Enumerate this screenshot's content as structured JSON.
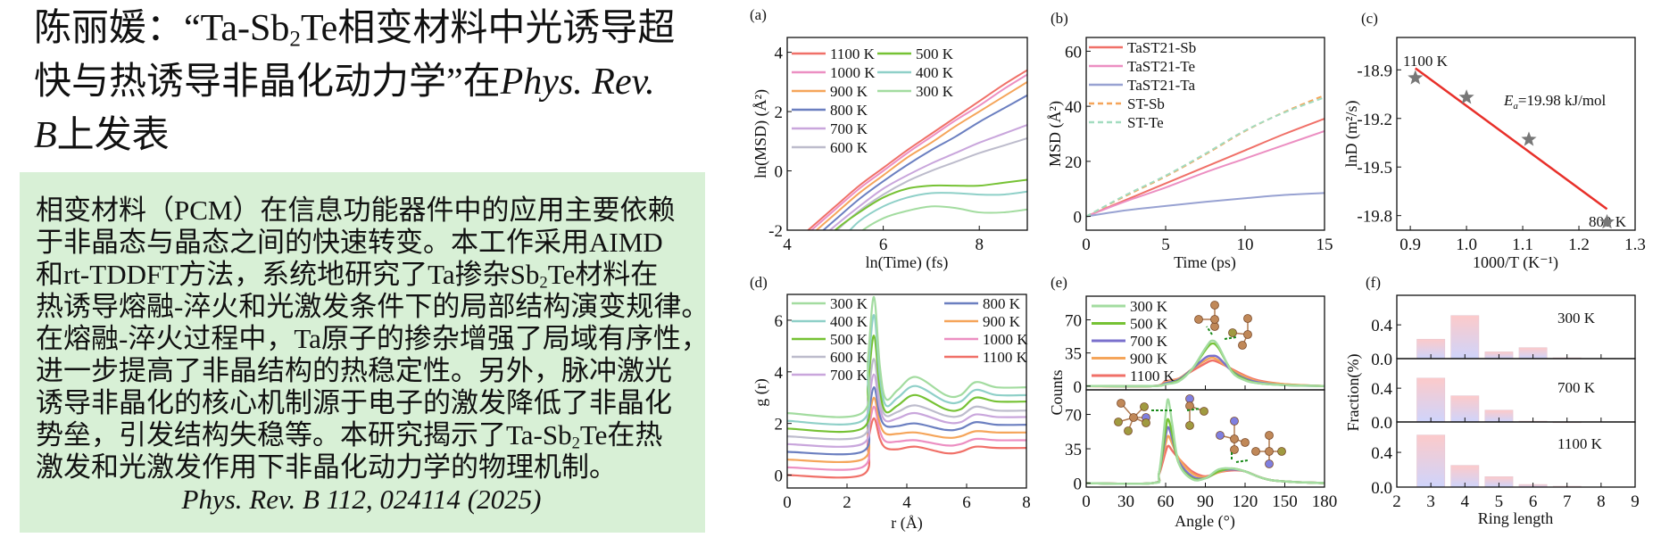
{
  "title": {
    "line1_a": "陈丽媛：“Ta-Sb",
    "line1_sub": "2",
    "line1_b": "Te相变材料中光诱导超",
    "line2_a": "快与热诱导非晶化动力学”在",
    "line2_i": "Phys. Rev.",
    "line3_i": "B",
    "line3_b": "上发表"
  },
  "body": {
    "lines": [
      {
        "a": "相变材料（PCM）在信息功能器件中的应用主要依赖"
      },
      {
        "a": "于非晶态与晶态之间的快速转变。本工作采用AIMD"
      },
      {
        "a": "和rt-TDDFT方法，系统地研究了Ta掺杂Sb",
        "sub": "2",
        "b": "Te材料在"
      },
      {
        "a": "热诱导熔融-淬火和光激发条件下的局部结构演变规律。"
      },
      {
        "a": "在熔融-淬火过程中，Ta原子的掺杂增强了局域有序性，"
      },
      {
        "a": "进一步提高了非晶结构的热稳定性。另外，脉冲激光"
      },
      {
        "a": "诱导非晶化的核心机制源于电子的激发降低了非晶化"
      },
      {
        "a": "势垒，引发结构失稳等。本研究揭示了Ta-Sb",
        "sub": "2",
        "b": "Te在热"
      },
      {
        "a": "激发和光激发作用下非晶化动力学的物理机制。"
      }
    ],
    "citation": "Phys. Rev. B 112, 024114 (2025)"
  },
  "colors": {
    "box_bg": "#d8f0d6",
    "T1100": "#f07068",
    "T1000": "#ec8fc2",
    "T900": "#f5a55a",
    "T800": "#6b7fc0",
    "T700": "#c9a6dc",
    "T600": "#bdbccc",
    "T500": "#76c234",
    "T400": "#8fd0c8",
    "T300": "#a3dca0",
    "fit": "#e8302a",
    "star": "#777777"
  },
  "chart_data": [
    {
      "panel": "(a)",
      "type": "line",
      "xlabel": "ln(Time) (fs)",
      "ylabel": "ln(MSD) (Å²)",
      "xlim": [
        4,
        9
      ],
      "ylim": [
        -2,
        4.5
      ],
      "xticks": [
        4,
        6,
        8
      ],
      "yticks": [
        -2,
        0,
        2,
        4
      ],
      "x": [
        4.4,
        5,
        5.5,
        6,
        6.5,
        7,
        7.5,
        8,
        8.5,
        9
      ],
      "series": [
        {
          "name": "1100 K",
          "color": "#f07068",
          "values": [
            -2.05,
            -1.2,
            -0.5,
            0.1,
            0.7,
            1.25,
            1.8,
            2.35,
            2.9,
            3.4
          ]
        },
        {
          "name": "1000 K",
          "color": "#ec8fc2",
          "values": [
            -2.15,
            -1.3,
            -0.6,
            0.0,
            0.6,
            1.15,
            1.7,
            2.2,
            2.75,
            3.25
          ]
        },
        {
          "name": "900 K",
          "color": "#f5a55a",
          "values": [
            -2.3,
            -1.45,
            -0.75,
            -0.15,
            0.45,
            0.95,
            1.5,
            2.0,
            2.5,
            3.0
          ]
        },
        {
          "name": "800 K",
          "color": "#6b7fc0",
          "values": [
            -2.5,
            -1.65,
            -0.95,
            -0.35,
            0.2,
            0.7,
            1.15,
            1.65,
            2.1,
            2.55
          ]
        },
        {
          "name": "700 K",
          "color": "#c9a6dc",
          "values": [
            -2.7,
            -1.85,
            -1.2,
            -0.6,
            -0.15,
            0.25,
            0.6,
            0.95,
            1.25,
            1.55
          ]
        },
        {
          "name": "600 K",
          "color": "#bdbccc",
          "values": [
            -2.9,
            -2.05,
            -1.35,
            -0.8,
            -0.35,
            0.0,
            0.3,
            0.6,
            0.85,
            1.1
          ]
        },
        {
          "name": "500 K",
          "color": "#76c234",
          "values": [
            -3.0,
            -2.0,
            -1.4,
            -0.9,
            -0.6,
            -0.5,
            -0.5,
            -0.5,
            -0.4,
            -0.3
          ]
        },
        {
          "name": "400 K",
          "color": "#8fd0c8",
          "values": [
            -3.2,
            -2.5,
            -1.7,
            -1.2,
            -0.9,
            -0.75,
            -0.75,
            -0.8,
            -0.8,
            -0.7
          ]
        },
        {
          "name": "300 K",
          "color": "#a3dca0",
          "values": [
            -3.5,
            -3.0,
            -2.1,
            -1.6,
            -1.35,
            -1.2,
            -1.25,
            -1.4,
            -1.4,
            -1.3
          ]
        }
      ],
      "legend": "top-left"
    },
    {
      "panel": "(b)",
      "type": "line",
      "xlabel": "Time (ps)",
      "ylabel": "MSD (Å²)",
      "xlim": [
        0,
        15
      ],
      "ylim": [
        -5,
        65
      ],
      "xticks": [
        0,
        5,
        10,
        15
      ],
      "yticks": [
        0,
        20,
        40,
        60
      ],
      "x": [
        0,
        2.5,
        5,
        7.5,
        10,
        12.5,
        15
      ],
      "series": [
        {
          "name": "TaST21-Sb",
          "color": "#f07068",
          "dash": false,
          "values": [
            0,
            6,
            12,
            18,
            24,
            30,
            35.5
          ]
        },
        {
          "name": "TaST21-Te",
          "color": "#ec8fc2",
          "dash": false,
          "values": [
            0,
            5.5,
            10.5,
            16,
            21,
            26,
            31
          ]
        },
        {
          "name": "TaST21-Ta",
          "color": "#98a2d2",
          "dash": false,
          "values": [
            0,
            2.2,
            3.8,
            5.3,
            6.6,
            7.8,
            8.5
          ]
        },
        {
          "name": "ST-Sb",
          "color": "#f5a55a",
          "dash": true,
          "values": [
            0,
            7.5,
            14.5,
            22.5,
            31,
            38,
            44
          ]
        },
        {
          "name": "ST-Te",
          "color": "#a3dcc0",
          "dash": true,
          "values": [
            0,
            7.8,
            14.8,
            22.8,
            31.2,
            37.8,
            43.2
          ]
        }
      ],
      "legend": "top-left"
    },
    {
      "panel": "(c)",
      "type": "scatter",
      "xlabel": "1000/T (K⁻¹)",
      "ylabel": "lnD (m²/s)",
      "xlim": [
        0.876,
        1.3
      ],
      "ylim": [
        -19.89,
        -18.7
      ],
      "xticks": [
        0.9,
        1.0,
        1.1,
        1.2,
        1.3
      ],
      "ytick_labels": [
        "-18.9",
        "-19.2",
        "-19.5",
        "-19.8"
      ],
      "yticks": [
        -18.9,
        -19.2,
        -19.5,
        -19.8
      ],
      "points": [
        [
          0.909,
          -18.95
        ],
        [
          1.0,
          -19.07
        ],
        [
          1.111,
          -19.33
        ],
        [
          1.25,
          -19.84
        ]
      ],
      "fit": [
        [
          0.909,
          -18.89
        ],
        [
          1.25,
          -19.76
        ]
      ],
      "annotations": {
        "high": "1100 K",
        "low": "800 K",
        "ea_symbol": "E",
        "ea_sub": "a",
        "ea_value": "=19.98 kJ/mol"
      }
    },
    {
      "panel": "(d)",
      "type": "line",
      "xlabel": "r (Å)",
      "ylabel": "g (r)",
      "xlim": [
        0,
        8
      ],
      "ylim": [
        -0.5,
        7
      ],
      "xticks": [
        0,
        2,
        4,
        6,
        8
      ],
      "yticks": [
        0,
        2,
        4,
        6
      ],
      "x": [
        0,
        2.5,
        2.7,
        2.9,
        3.1,
        3.3,
        3.7,
        4.3,
        5.3,
        5.8,
        6.3,
        7,
        8
      ],
      "series": [
        {
          "name": "300 K",
          "color": "#a3dca0",
          "values": [
            2.4,
            2.4,
            4.5,
            6.9,
            4.2,
            2.95,
            3.3,
            3.8,
            3.1,
            3.1,
            3.6,
            3.4,
            3.4
          ]
        },
        {
          "name": "400 K",
          "color": "#8fd0c8",
          "values": [
            2.1,
            2.1,
            4.0,
            6.2,
            3.8,
            2.7,
            3.0,
            3.45,
            2.85,
            2.85,
            3.3,
            3.1,
            3.1
          ]
        },
        {
          "name": "500 K",
          "color": "#76c234",
          "values": [
            1.8,
            1.8,
            3.5,
            5.4,
            3.3,
            2.45,
            2.7,
            3.1,
            2.55,
            2.55,
            3.0,
            2.85,
            2.85
          ]
        },
        {
          "name": "600 K",
          "color": "#bdbccc",
          "values": [
            1.5,
            1.5,
            3.0,
            4.5,
            2.9,
            2.3,
            2.45,
            2.7,
            2.3,
            2.3,
            2.65,
            2.5,
            2.5
          ]
        },
        {
          "name": "700 K",
          "color": "#c9a6dc",
          "values": [
            1.2,
            1.2,
            2.6,
            3.9,
            2.6,
            2.1,
            2.2,
            2.4,
            2.05,
            2.05,
            2.35,
            2.25,
            2.25
          ]
        },
        {
          "name": "800 K",
          "color": "#6b7fc0",
          "values": [
            0.9,
            0.9,
            2.2,
            3.4,
            2.3,
            1.9,
            1.9,
            2.0,
            1.75,
            1.8,
            2.05,
            1.95,
            1.95
          ]
        },
        {
          "name": "900 K",
          "color": "#f5a55a",
          "values": [
            0.6,
            0.6,
            1.9,
            3.0,
            2.0,
            1.6,
            1.6,
            1.65,
            1.45,
            1.5,
            1.7,
            1.65,
            1.65
          ]
        },
        {
          "name": "1000 K",
          "color": "#ec8fc2",
          "values": [
            0.3,
            0.3,
            1.6,
            2.65,
            1.7,
            1.3,
            1.3,
            1.35,
            1.15,
            1.2,
            1.4,
            1.35,
            1.35
          ]
        },
        {
          "name": "1100 K",
          "color": "#f07068",
          "values": [
            0.0,
            0.0,
            1.3,
            2.2,
            1.4,
            1.05,
            1.0,
            1.1,
            0.85,
            0.9,
            1.1,
            1.05,
            1.05
          ]
        }
      ],
      "legend": "top"
    },
    {
      "panel": "(e)",
      "type": "line",
      "xlabel": "Angle (°)",
      "ylabel": "Counts",
      "xlim": [
        0,
        180
      ],
      "ylim": [
        -4,
        95
      ],
      "xticks": [
        0,
        30,
        60,
        90,
        120,
        150,
        180
      ],
      "yticks": [
        0,
        35,
        70
      ],
      "top": {
        "x": [
          0,
          50,
          60,
          70,
          80,
          90,
          95,
          100,
          110,
          120,
          130,
          150,
          180
        ],
        "series": [
          {
            "name": "300 K",
            "color": "#a3dca0",
            "values": [
              0,
              0,
              2,
              5,
              18,
              40,
              48,
              42,
              15,
              6,
              3,
              1,
              0
            ]
          },
          {
            "name": "500 K",
            "color": "#76c234",
            "values": [
              0,
              0,
              2,
              6,
              18,
              38,
              45,
              40,
              16,
              7,
              3,
              1,
              0
            ]
          },
          {
            "name": "700 K",
            "color": "#7a70cc",
            "values": [
              0,
              0,
              3,
              7,
              18,
              30,
              32,
              30,
              16,
              8,
              4,
              1,
              0
            ]
          },
          {
            "name": "900 K",
            "color": "#f5a55a",
            "values": [
              0,
              0,
              4,
              8,
              18,
              27,
              30,
              27,
              17,
              10,
              5,
              2,
              0
            ]
          },
          {
            "name": "1100 K",
            "color": "#f07068",
            "values": [
              0,
              0,
              5,
              8,
              16,
              24,
              27,
              25,
              18,
              11,
              6,
              2,
              0
            ]
          }
        ]
      },
      "bottom": {
        "x": [
          0,
          50,
          55,
          60,
          62,
          65,
          70,
          80,
          90,
          100,
          110,
          120,
          140,
          180
        ],
        "series": [
          {
            "name": "300 K",
            "color": "#a3dca0",
            "values": [
              0,
              0,
              10,
              70,
              85,
              60,
              20,
              4,
              5,
              14,
              15,
              12,
              3,
              0
            ]
          },
          {
            "name": "500 K",
            "color": "#76c234",
            "values": [
              0,
              0,
              10,
              55,
              65,
              50,
              20,
              5,
              5,
              12,
              15,
              12,
              3,
              0
            ]
          },
          {
            "name": "700 K",
            "color": "#7a70cc",
            "values": [
              0,
              0,
              10,
              48,
              57,
              45,
              22,
              7,
              5,
              12,
              14,
              12,
              3,
              0
            ]
          },
          {
            "name": "900 K",
            "color": "#f5a55a",
            "values": [
              0,
              0,
              10,
              40,
              48,
              40,
              25,
              10,
              6,
              11,
              14,
              12,
              3,
              0
            ]
          },
          {
            "name": "1100 K",
            "color": "#f07068",
            "values": [
              0,
              0,
              9,
              32,
              38,
              33,
              25,
              12,
              7,
              11,
              13,
              12,
              3,
              0
            ]
          }
        ]
      },
      "legend": "top-left"
    },
    {
      "panel": "(f)",
      "type": "bar",
      "xlabel": "Ring length",
      "ylabel": "Fraction(%)",
      "xlim": [
        2,
        9
      ],
      "ylim": [
        0,
        0.75
      ],
      "xticks": [
        2,
        3,
        4,
        5,
        6,
        7,
        8,
        9
      ],
      "yticks": [
        0.0,
        0.4
      ],
      "ytick_labels": [
        "0.0",
        "0.4"
      ],
      "categories": [
        3,
        4,
        5,
        6,
        7
      ],
      "series": [
        {
          "name": "300 K",
          "values": [
            0.23,
            0.51,
            0.08,
            0.13,
            0.01
          ]
        },
        {
          "name": "700 K",
          "values": [
            0.52,
            0.31,
            0.14,
            0.01,
            0.0
          ]
        },
        {
          "name": "1100 K",
          "values": [
            0.6,
            0.25,
            0.12,
            0.03,
            0.01
          ]
        }
      ],
      "bar_colors": [
        "#fccaca",
        "#cfd4fb"
      ]
    }
  ]
}
